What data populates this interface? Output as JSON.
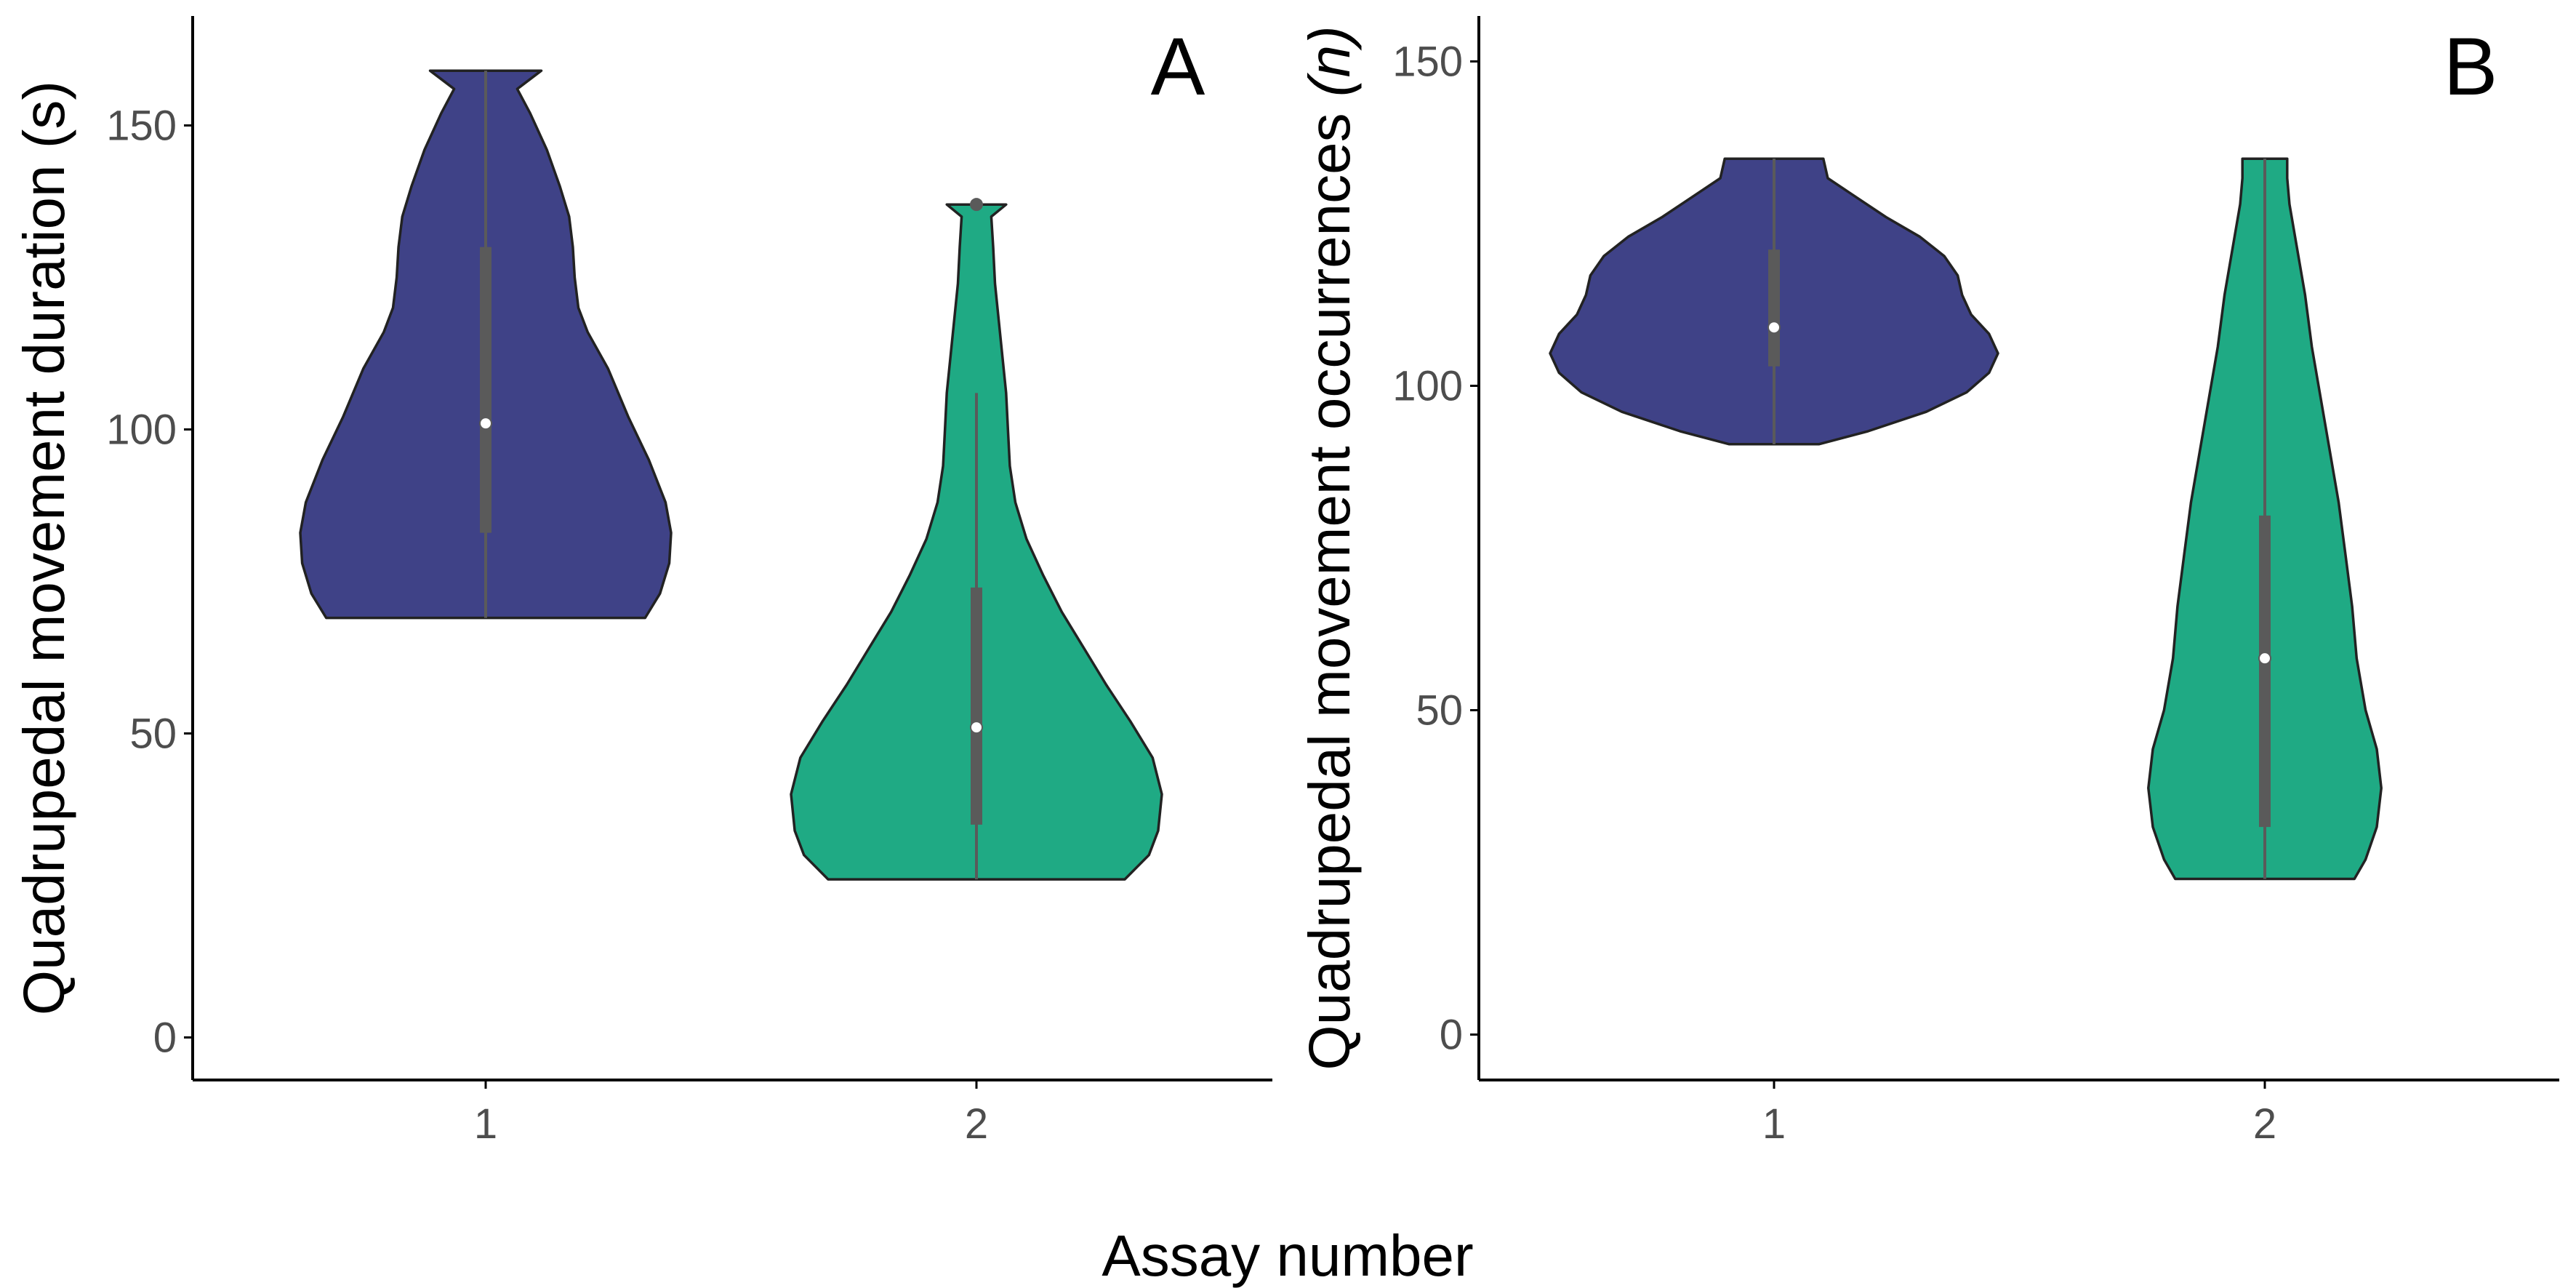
{
  "figure": {
    "shared_xlabel": "Assay number",
    "colors": {
      "assay1_fill": "#3f4287",
      "assay2_fill": "#1faa84",
      "outline": "#222222",
      "boxplot": "#5a5a5a",
      "median": "#ffffff",
      "axis": "#000000",
      "tick_text": "#4d4d4d"
    }
  },
  "chart_data": [
    {
      "type": "violin",
      "panel_tag": "A",
      "title": "",
      "xlabel": "Assay number",
      "ylabel": "Quadrupedal movement duration (s)",
      "ylabel_main": "Quadrupedal movement duration (s)",
      "ylabel_italic": "",
      "ylabel_tail": "",
      "ylim": [
        -7,
        168
      ],
      "yticks": [
        0,
        50,
        100,
        150
      ],
      "categories": [
        "1",
        "2"
      ],
      "series": [
        {
          "name": "1",
          "min": 69,
          "max": 159,
          "q1": 83,
          "median": 101,
          "q3": 130,
          "whisker_low": 69,
          "whisker_high": 159,
          "outliers": [],
          "density": [
            [
              69,
              0.86
            ],
            [
              73,
              0.94
            ],
            [
              78,
              0.99
            ],
            [
              83,
              1.0
            ],
            [
              88,
              0.97
            ],
            [
              95,
              0.88
            ],
            [
              102,
              0.77
            ],
            [
              110,
              0.66
            ],
            [
              116,
              0.55
            ],
            [
              120,
              0.5
            ],
            [
              125,
              0.48
            ],
            [
              130,
              0.47
            ],
            [
              135,
              0.45
            ],
            [
              140,
              0.4
            ],
            [
              146,
              0.33
            ],
            [
              152,
              0.24
            ],
            [
              156,
              0.17
            ],
            [
              159,
              0.3
            ]
          ]
        },
        {
          "name": "2",
          "min": 26,
          "max": 137,
          "q1": 35,
          "median": 51,
          "q3": 74,
          "whisker_low": 26,
          "whisker_high": 106,
          "outliers": [
            137
          ],
          "density": [
            [
              26,
              0.8
            ],
            [
              30,
              0.93
            ],
            [
              34,
              0.98
            ],
            [
              40,
              1.0
            ],
            [
              46,
              0.95
            ],
            [
              52,
              0.83
            ],
            [
              58,
              0.7
            ],
            [
              64,
              0.58
            ],
            [
              70,
              0.46
            ],
            [
              76,
              0.36
            ],
            [
              82,
              0.27
            ],
            [
              88,
              0.21
            ],
            [
              94,
              0.18
            ],
            [
              100,
              0.17
            ],
            [
              106,
              0.16
            ],
            [
              112,
              0.14
            ],
            [
              118,
              0.12
            ],
            [
              124,
              0.1
            ],
            [
              130,
              0.09
            ],
            [
              135,
              0.08
            ],
            [
              137,
              0.16
            ]
          ]
        }
      ]
    },
    {
      "type": "violin",
      "panel_tag": "B",
      "title": "",
      "xlabel": "Assay number",
      "ylabel": "Quadrupedal movement occurrences (n)",
      "ylabel_main": "Quadrupedal movement occurrences ",
      "ylabel_italic": "(n)",
      "ylabel_tail": "",
      "ylim": [
        -7,
        157
      ],
      "yticks": [
        0,
        50,
        100,
        150
      ],
      "categories": [
        "1",
        "2"
      ],
      "series": [
        {
          "name": "1",
          "min": 91,
          "max": 135,
          "q1": 103,
          "median": 109,
          "q3": 121,
          "whisker_low": 91,
          "whisker_high": 135,
          "outliers": [],
          "density": [
            [
              91,
              0.2
            ],
            [
              93,
              0.42
            ],
            [
              96,
              0.68
            ],
            [
              99,
              0.86
            ],
            [
              102,
              0.96
            ],
            [
              105,
              1.0
            ],
            [
              108,
              0.96
            ],
            [
              111,
              0.88
            ],
            [
              114,
              0.84
            ],
            [
              117,
              0.82
            ],
            [
              120,
              0.76
            ],
            [
              123,
              0.65
            ],
            [
              126,
              0.5
            ],
            [
              129,
              0.37
            ],
            [
              132,
              0.24
            ],
            [
              135,
              0.22
            ]
          ]
        },
        {
          "name": "2",
          "min": 24,
          "max": 135,
          "q1": 32,
          "median": 58,
          "q3": 80,
          "whisker_low": 24,
          "whisker_high": 135,
          "outliers": [],
          "density": [
            [
              24,
              0.4
            ],
            [
              27,
              0.45
            ],
            [
              32,
              0.5
            ],
            [
              38,
              0.52
            ],
            [
              44,
              0.5
            ],
            [
              50,
              0.45
            ],
            [
              58,
              0.41
            ],
            [
              66,
              0.39
            ],
            [
              74,
              0.36
            ],
            [
              82,
              0.33
            ],
            [
              90,
              0.29
            ],
            [
              98,
              0.25
            ],
            [
              106,
              0.21
            ],
            [
              114,
              0.18
            ],
            [
              122,
              0.14
            ],
            [
              128,
              0.11
            ],
            [
              132,
              0.1
            ],
            [
              135,
              0.1
            ]
          ]
        }
      ]
    }
  ]
}
